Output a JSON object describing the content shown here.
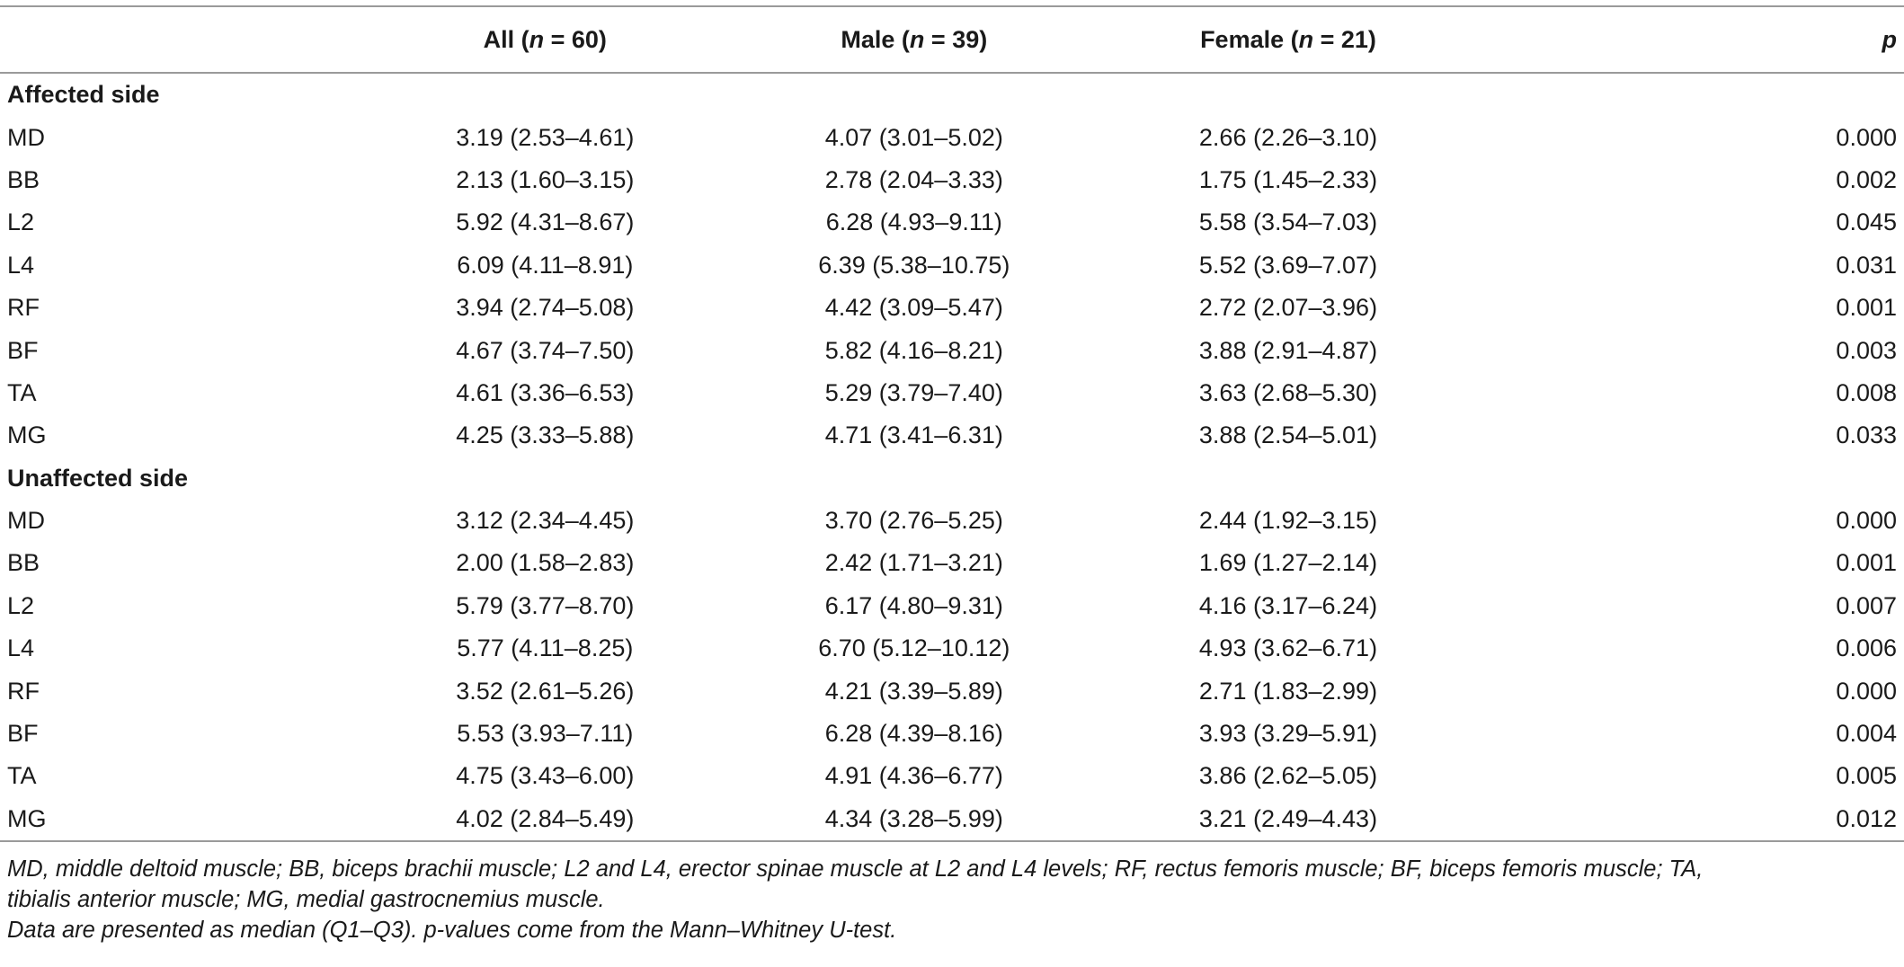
{
  "header": {
    "col0": "",
    "all_label": "All (",
    "all_n": "n",
    "all_eq": " = 60)",
    "male_label": "Male (",
    "male_n": "n",
    "male_eq": " = 39)",
    "female_label": "Female (",
    "female_n": "n",
    "female_eq": " = 21)",
    "p": "p"
  },
  "sections": [
    {
      "title": "Affected side",
      "rows": [
        {
          "muscle": "MD",
          "all": "3.19 (2.53–4.61)",
          "male": "4.07 (3.01–5.02)",
          "female": "2.66 (2.26–3.10)",
          "p": "0.000"
        },
        {
          "muscle": "BB",
          "all": "2.13 (1.60–3.15)",
          "male": "2.78 (2.04–3.33)",
          "female": "1.75 (1.45–2.33)",
          "p": "0.002"
        },
        {
          "muscle": "L2",
          "all": "5.92 (4.31–8.67)",
          "male": "6.28 (4.93–9.11)",
          "female": "5.58 (3.54–7.03)",
          "p": "0.045"
        },
        {
          "muscle": "L4",
          "all": "6.09 (4.11–8.91)",
          "male": "6.39 (5.38–10.75)",
          "female": "5.52 (3.69–7.07)",
          "p": "0.031"
        },
        {
          "muscle": "RF",
          "all": "3.94 (2.74–5.08)",
          "male": "4.42 (3.09–5.47)",
          "female": "2.72 (2.07–3.96)",
          "p": "0.001"
        },
        {
          "muscle": "BF",
          "all": "4.67 (3.74–7.50)",
          "male": "5.82 (4.16–8.21)",
          "female": "3.88 (2.91–4.87)",
          "p": "0.003"
        },
        {
          "muscle": "TA",
          "all": "4.61 (3.36–6.53)",
          "male": "5.29 (3.79–7.40)",
          "female": "3.63 (2.68–5.30)",
          "p": "0.008"
        },
        {
          "muscle": "MG",
          "all": "4.25 (3.33–5.88)",
          "male": "4.71 (3.41–6.31)",
          "female": "3.88 (2.54–5.01)",
          "p": "0.033"
        }
      ]
    },
    {
      "title": "Unaffected side",
      "rows": [
        {
          "muscle": "MD",
          "all": "3.12 (2.34–4.45)",
          "male": "3.70 (2.76–5.25)",
          "female": "2.44 (1.92–3.15)",
          "p": "0.000"
        },
        {
          "muscle": "BB",
          "all": "2.00 (1.58–2.83)",
          "male": "2.42 (1.71–3.21)",
          "female": "1.69 (1.27–2.14)",
          "p": "0.001"
        },
        {
          "muscle": "L2",
          "all": "5.79 (3.77–8.70)",
          "male": "6.17 (4.80–9.31)",
          "female": "4.16 (3.17–6.24)",
          "p": "0.007"
        },
        {
          "muscle": "L4",
          "all": "5.77 (4.11–8.25)",
          "male": "6.70 (5.12–10.12)",
          "female": "4.93 (3.62–6.71)",
          "p": "0.006"
        },
        {
          "muscle": "RF",
          "all": "3.52 (2.61–5.26)",
          "male": "4.21 (3.39–5.89)",
          "female": "2.71 (1.83–2.99)",
          "p": "0.000"
        },
        {
          "muscle": "BF",
          "all": "5.53 (3.93–7.11)",
          "male": "6.28 (4.39–8.16)",
          "female": "3.93 (3.29–5.91)",
          "p": "0.004"
        },
        {
          "muscle": "TA",
          "all": "4.75 (3.43–6.00)",
          "male": "4.91 (4.36–6.77)",
          "female": "3.86 (2.62–5.05)",
          "p": "0.005"
        },
        {
          "muscle": "MG",
          "all": "4.02 (2.84–5.49)",
          "male": "4.34 (3.28–5.99)",
          "female": "3.21 (2.49–4.43)",
          "p": "0.012"
        }
      ]
    }
  ],
  "notes": {
    "abbreviations_line1": "MD, middle deltoid muscle; BB, biceps brachii muscle; L2 and L4, erector spinae muscle at L2 and L4 levels; RF, rectus femoris muscle; BF, biceps femoris muscle; TA,",
    "abbreviations_line2": "tibialis anterior muscle; MG, medial gastrocnemius muscle.",
    "data_note": "Data are presented as median (Q1–Q3). p-values come from the Mann–Whitney U-test."
  }
}
